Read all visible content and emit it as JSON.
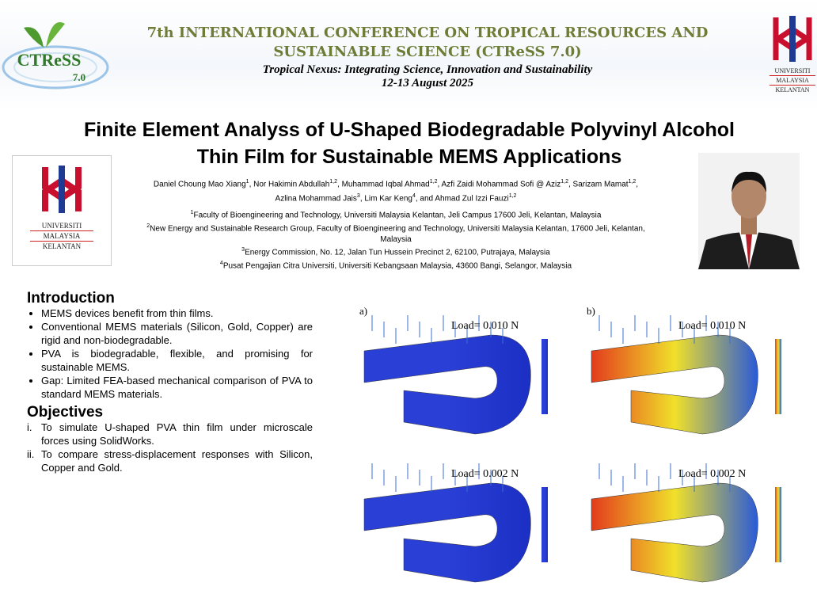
{
  "header": {
    "logo_left": {
      "title": "CTReSS",
      "version": "7.0"
    },
    "conference": "7th INTERNATIONAL CONFERENCE ON TROPICAL RESOURCES AND SUSTAINABLE SCIENCE (CTReSS 7.0)",
    "theme": "Tropical Nexus: Integrating Science, Innovation and Sustainability",
    "dates": "12-13 August 2025",
    "logo_right": [
      "UNIVERSITI",
      "MALAYSIA",
      "KELANTAN"
    ]
  },
  "paper": {
    "title": "Finite Element Analyss of U-Shaped Biodegradable Polyvinyl Alcohol Thin Film for Sustainable MEMS Applications",
    "logo": [
      "UNIVERSITI",
      "MALAYSIA",
      "KELANTAN"
    ],
    "authors": [
      {
        "name": "Daniel Choung Mao Xiang",
        "sup": "1"
      },
      {
        "name": ", Nor Hakimin Abdullah",
        "sup": "1,2"
      },
      {
        "name": ", Muhammad Iqbal Ahmad",
        "sup": "1,2"
      },
      {
        "name": ", Azfi Zaidi Mohammad Sofi @ Aziz",
        "sup": "1,2"
      },
      {
        "name": ", Sarizam Mamat",
        "sup": "1,2"
      },
      {
        "name": ", Azlina Mohammad Jais",
        "sup": "3"
      },
      {
        "name": ", Lim Kar Keng",
        "sup": "4"
      },
      {
        "name": ", and Ahmad Zul Izzi Fauzi",
        "sup": "1,2"
      }
    ],
    "affiliations": [
      {
        "sup": "1",
        "text": "Faculty of Bioengineering and Technology, Universiti Malaysia Kelantan, Jeli Campus 17600 Jeli, Kelantan, Malaysia"
      },
      {
        "sup": "2",
        "text": "New Energy and Sustainable Research Group, Faculty of Bioengineering and Technology, Universiti Malaysia Kelantan, 17600 Jeli, Kelantan, Malaysia"
      },
      {
        "sup": "3",
        "text": "Energy Commission, No. 12, Jalan Tun Hussein Precinct 2, 62100, Putrajaya, Malaysia"
      },
      {
        "sup": "4",
        "text": "Pusat Pengajian Citra Universiti, Universiti Kebangsaan Malaysia, 43600 Bangi, Selangor, Malaysia"
      }
    ]
  },
  "introduction": {
    "heading": "Introduction",
    "items": [
      "MEMS devices benefit from thin films.",
      "Conventional MEMS materials (Silicon, Gold, Copper) are rigid and non-biodegradable.",
      "PVA is biodegradable, flexible, and promising for sustainable MEMS.",
      "Gap: Limited FEA-based mechanical comparison of PVA to standard MEMS materials."
    ]
  },
  "objectives": {
    "heading": "Objectives",
    "items": [
      {
        "marker": "i.",
        "text": "To simulate U-shaped PVA thin film under microscale forces using SolidWorks."
      },
      {
        "marker": "ii.",
        "text": "To compare stress-displacement responses with Silicon, Copper and Gold."
      }
    ]
  },
  "figures": [
    {
      "label": "a)",
      "load": "Load= 0.010 N"
    },
    {
      "label": "b)",
      "load": "Load= 0.010 N"
    },
    {
      "label": null,
      "load": "Load= 0.002 N"
    },
    {
      "label": null,
      "load": "Load= 0.002 N"
    }
  ]
}
